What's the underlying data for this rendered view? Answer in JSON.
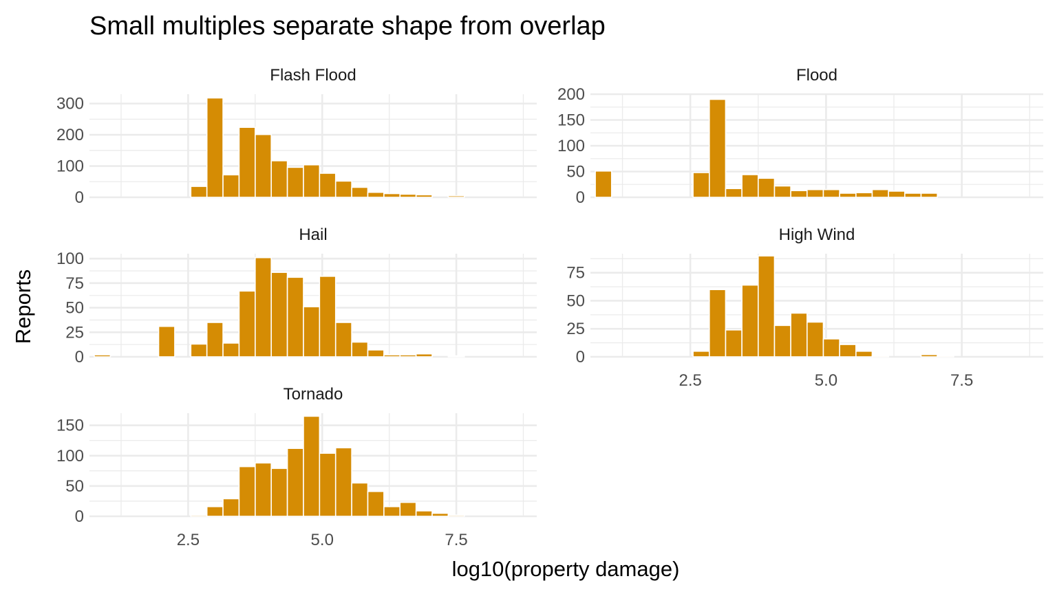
{
  "chart_data": {
    "type": "bar",
    "subtype": "faceted-histogram",
    "title": "Small multiples separate shape from overlap",
    "xlabel": "log10(property damage)",
    "ylabel": "Reports",
    "bar_color": "#D58C04",
    "xlim": [
      0.66,
      9.0
    ],
    "x_ticks": [
      2.5,
      5.0,
      7.5
    ],
    "x_tick_labels": [
      "2.5",
      "5.0",
      "7.5"
    ],
    "bin_width": 0.3,
    "bin_centers": [
      0.9,
      1.2,
      1.5,
      1.8,
      2.1,
      2.4,
      2.7,
      3.0,
      3.3,
      3.6,
      3.9,
      4.2,
      4.5,
      4.8,
      5.1,
      5.4,
      5.7,
      6.0,
      6.3,
      6.6,
      6.9,
      7.2,
      7.5,
      7.8,
      8.1,
      8.4,
      8.7
    ],
    "panels": [
      {
        "name": "Flash Flood",
        "ylim": [
          0,
          330
        ],
        "y_ticks": [
          0,
          100,
          200,
          300
        ],
        "y_tick_labels": [
          "0",
          "100",
          "200",
          "300"
        ],
        "values": [
          0,
          0,
          0,
          0,
          0,
          0,
          35,
          318,
          72,
          224,
          201,
          117,
          96,
          104,
          77,
          52,
          32,
          16,
          12,
          10,
          8,
          0,
          5,
          0,
          0,
          0,
          0
        ]
      },
      {
        "name": "Flood",
        "ylim": [
          0,
          200
        ],
        "y_ticks": [
          0,
          50,
          100,
          150,
          200
        ],
        "y_tick_labels": [
          "0",
          "50",
          "100",
          "150",
          "200"
        ],
        "values": [
          51,
          0,
          0,
          0,
          0,
          0,
          48,
          190,
          17,
          44,
          37,
          22,
          13,
          15,
          15,
          8,
          9,
          15,
          12,
          8,
          8,
          0,
          0,
          0,
          0,
          0,
          0
        ]
      },
      {
        "name": "Hail",
        "ylim": [
          0,
          105
        ],
        "y_ticks": [
          0,
          25,
          50,
          75,
          100
        ],
        "y_tick_labels": [
          "0",
          "25",
          "50",
          "75",
          "100"
        ],
        "values": [
          2,
          0,
          0,
          0,
          31,
          0,
          13,
          35,
          14,
          67,
          101,
          86,
          81,
          51,
          82,
          35,
          15,
          7,
          2,
          2,
          3,
          0,
          1,
          0,
          0,
          0,
          0
        ]
      },
      {
        "name": "High Wind",
        "ylim": [
          0,
          92
        ],
        "y_ticks": [
          0,
          25,
          50,
          75
        ],
        "y_tick_labels": [
          "0",
          "25",
          "50",
          "75"
        ],
        "values": [
          0,
          0,
          0,
          0,
          0,
          0,
          5,
          60,
          24,
          64,
          90,
          28,
          39,
          31,
          16,
          11,
          5,
          1,
          0,
          0,
          2,
          1,
          0,
          0,
          0,
          0,
          0
        ]
      },
      {
        "name": "Tornado",
        "ylim": [
          0,
          170
        ],
        "y_ticks": [
          0,
          50,
          100,
          150
        ],
        "y_tick_labels": [
          "0",
          "50",
          "100",
          "150"
        ],
        "values": [
          0,
          0,
          0,
          0,
          0,
          0,
          2,
          16,
          29,
          82,
          88,
          79,
          112,
          165,
          104,
          113,
          55,
          41,
          16,
          23,
          9,
          5,
          2,
          0,
          0,
          0,
          0
        ]
      }
    ]
  }
}
